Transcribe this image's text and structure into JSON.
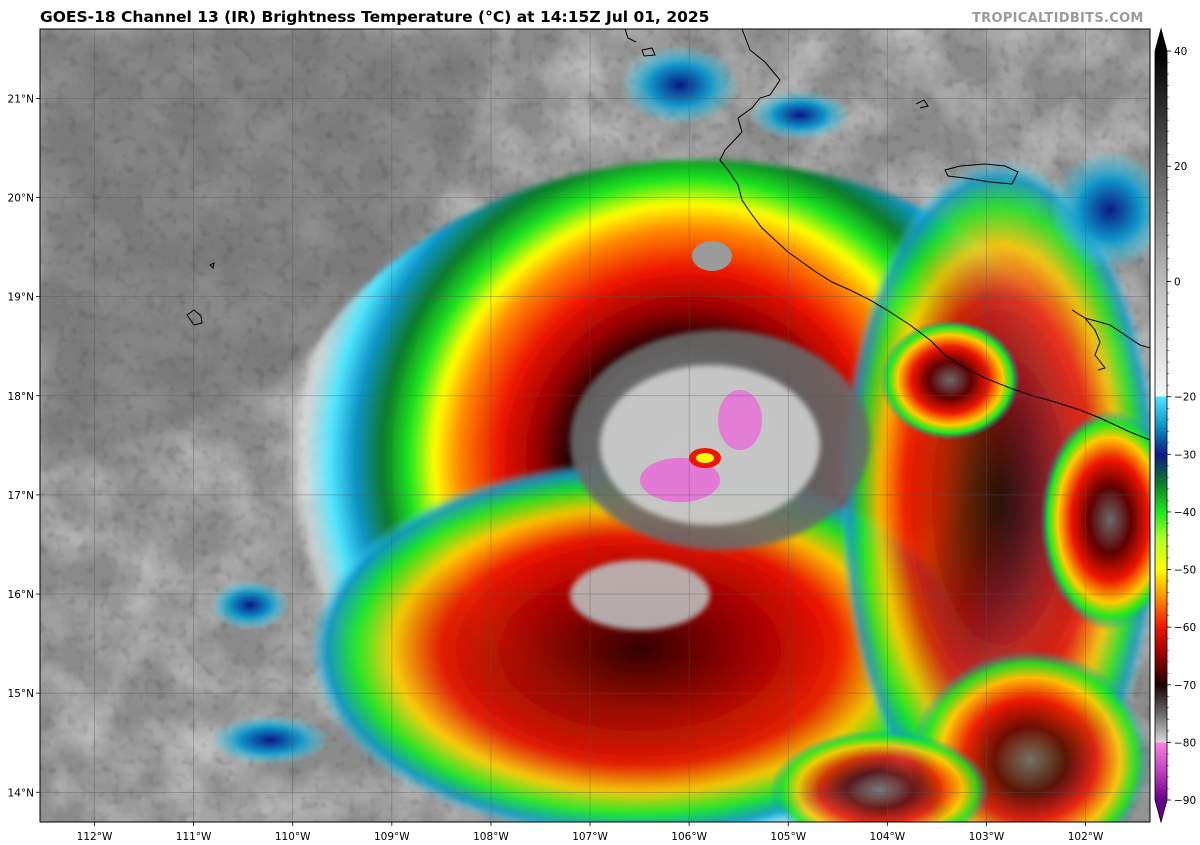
{
  "header": {
    "title": "GOES-18 Channel 13 (IR) Brightness Temperature (°C) at 14:15Z Jul 01, 2025",
    "credit": "TROPICALTIDBITS.COM"
  },
  "map": {
    "lon_range": [
      -112.55,
      -101.35
    ],
    "lat_range": [
      13.7,
      21.7
    ],
    "lon_ticks": [
      -112,
      -111,
      -110,
      -109,
      -108,
      -107,
      -106,
      -105,
      -104,
      -103,
      -102
    ],
    "lon_labels": [
      "112°W",
      "111°W",
      "110°W",
      "109°W",
      "108°W",
      "107°W",
      "106°W",
      "105°W",
      "104°W",
      "103°W",
      "102°W"
    ],
    "lat_ticks": [
      14,
      15,
      16,
      17,
      18,
      19,
      20,
      21
    ],
    "lat_labels": [
      "14°N",
      "15°N",
      "16°N",
      "17°N",
      "18°N",
      "19°N",
      "20°N",
      "21°N"
    ],
    "storm_center": {
      "lon": -105.9,
      "lat": 17.35
    }
  },
  "colorbar": {
    "range": [
      -90,
      40
    ],
    "tick_values": [
      40,
      20,
      0,
      -20,
      -30,
      -40,
      -50,
      -60,
      -70,
      -80,
      -90
    ],
    "tick_labels": [
      "40",
      "20",
      "0",
      "−20",
      "−30",
      "−40",
      "−50",
      "−60",
      "−70",
      "−80",
      "−90"
    ],
    "stops": [
      {
        "t": 40,
        "color": "#000000"
      },
      {
        "t": 0,
        "color": "#bbbbbb"
      },
      {
        "t": -20,
        "color": "#f6f6f6"
      },
      {
        "t": -20,
        "color": "#4fe6ff"
      },
      {
        "t": -25,
        "color": "#0f94c8"
      },
      {
        "t": -30,
        "color": "#0a1a86"
      },
      {
        "t": -35,
        "color": "#0a7a2a"
      },
      {
        "t": -40,
        "color": "#1ee81e"
      },
      {
        "t": -45,
        "color": "#b8ff2a"
      },
      {
        "t": -50,
        "color": "#ffff00"
      },
      {
        "t": -55,
        "color": "#ff8a00"
      },
      {
        "t": -60,
        "color": "#ee1500"
      },
      {
        "t": -65,
        "color": "#960000"
      },
      {
        "t": -70,
        "color": "#1e0000"
      },
      {
        "t": -75,
        "color": "#6a6a6a"
      },
      {
        "t": -80,
        "color": "#d9d9d9"
      },
      {
        "t": -80,
        "color": "#ff80e0"
      },
      {
        "t": -85,
        "color": "#c040c0"
      },
      {
        "t": -90,
        "color": "#660088"
      }
    ]
  }
}
